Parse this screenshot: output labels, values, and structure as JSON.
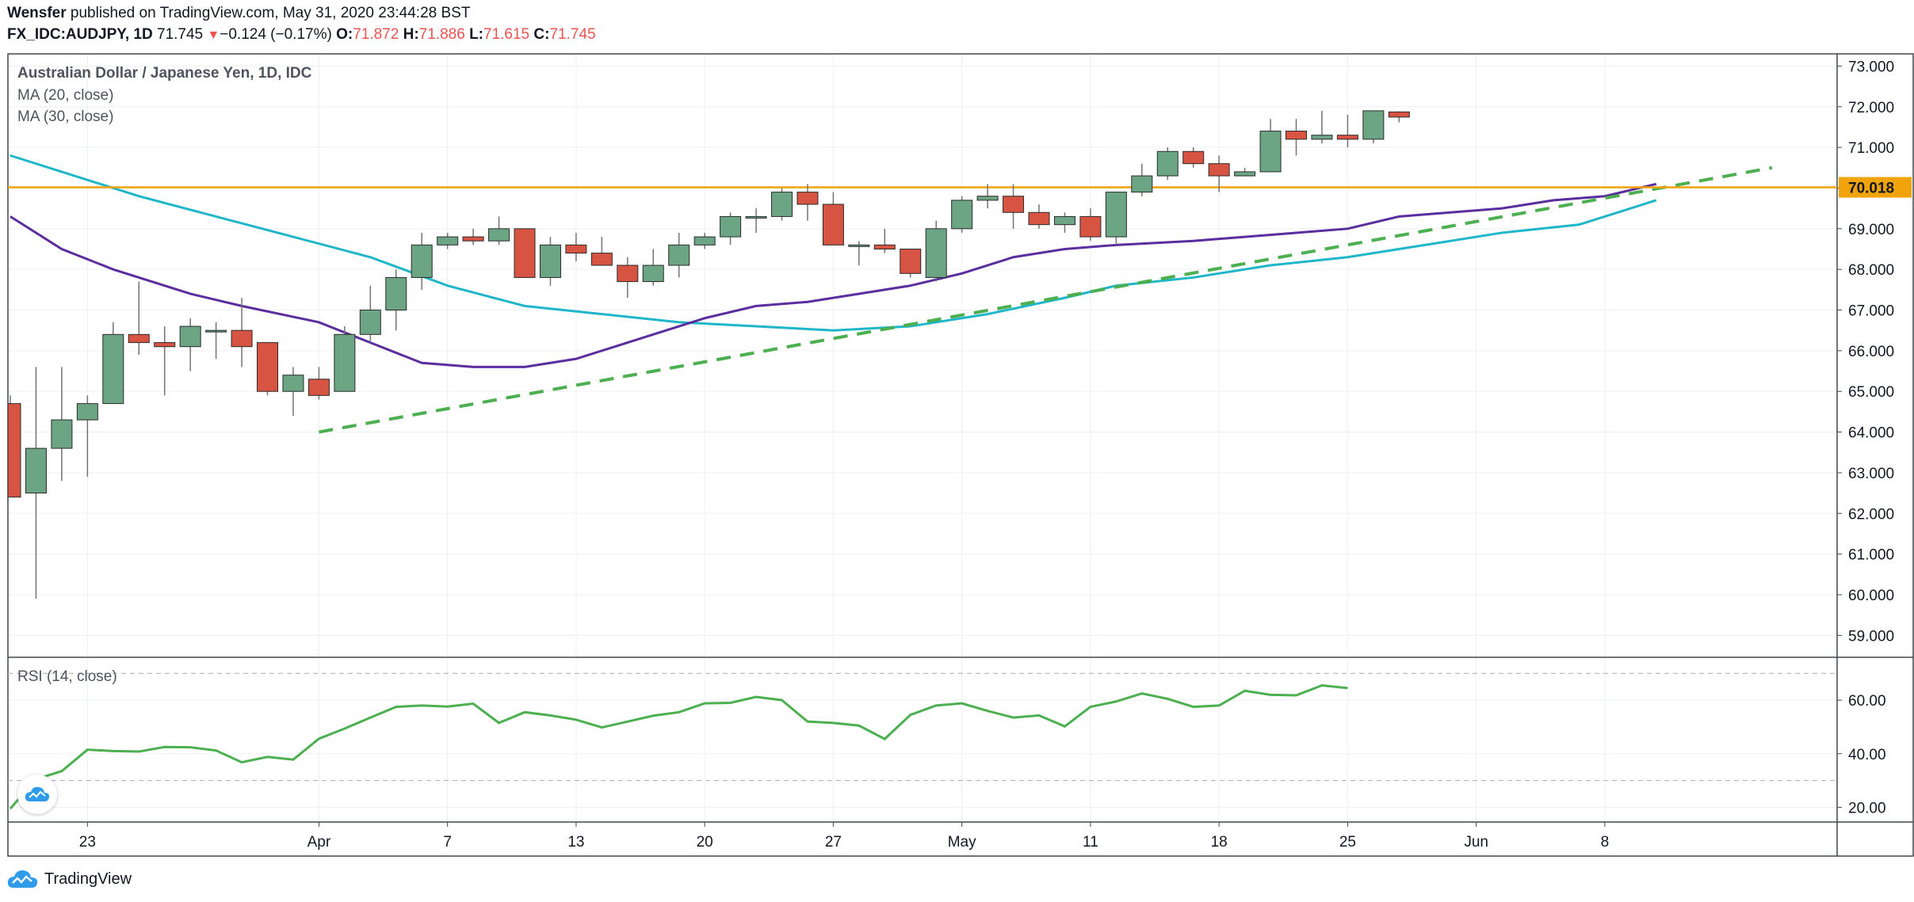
{
  "header": {
    "publisher": "Wensfer",
    "published_on": "published on TradingView.com, May 31, 2020 23:44:28 BST",
    "symbol": "FX_IDC:AUDJPY, 1D",
    "last": "71.745",
    "change_arrow": "▼",
    "change": "−0.124 (−0.17%)",
    "o_label": "O:",
    "o_value": "71.872",
    "h_label": "H:",
    "h_value": "71.886",
    "l_label": "L:",
    "l_value": "71.615",
    "c_label": "C:",
    "c_value": "71.745"
  },
  "legend": {
    "title": "Australian Dollar / Japanese Yen, 1D, IDC",
    "ma20": "MA (20, close)",
    "ma30": "MA (30, close)",
    "rsi": "RSI (14, close)"
  },
  "footer": {
    "brand": "TradingView"
  },
  "colors": {
    "up": "#6ba583",
    "down": "#d75442",
    "wick": "#737375",
    "ma20": "#5b2d9e",
    "ma30": "#1fb6c9",
    "trend": "#4caf50",
    "hline": "#f0a30a",
    "rsi": "#4caf50",
    "grid": "#eef0f3",
    "axis": "#434651"
  },
  "chart_data": {
    "type": "candlestick",
    "title": "Australian Dollar / Japanese Yen, 1D, IDC",
    "x_ticks": [
      {
        "i": 3,
        "label": "23"
      },
      {
        "i": 12,
        "label": "Apr"
      },
      {
        "i": 17,
        "label": "7"
      },
      {
        "i": 22,
        "label": "13"
      },
      {
        "i": 27,
        "label": "20"
      },
      {
        "i": 32,
        "label": "27"
      },
      {
        "i": 37,
        "label": "May"
      },
      {
        "i": 42,
        "label": "11"
      },
      {
        "i": 47,
        "label": "18"
      },
      {
        "i": 52,
        "label": "25"
      },
      {
        "i": 57,
        "label": "Jun"
      },
      {
        "i": 62,
        "label": "8"
      }
    ],
    "price_axis": {
      "ylim": [
        58.5,
        73.3
      ],
      "ticks": [
        "59.000",
        "60.000",
        "61.000",
        "62.000",
        "63.000",
        "64.000",
        "65.000",
        "66.000",
        "67.000",
        "68.000",
        "69.000",
        "70.000",
        "71.000",
        "72.000",
        "73.000"
      ],
      "marker": {
        "value": 70.018,
        "label": "70.018"
      }
    },
    "candles": [
      {
        "o": 64.7,
        "h": 64.9,
        "l": 62.4,
        "c": 62.4
      },
      {
        "o": 62.5,
        "h": 65.6,
        "l": 59.9,
        "c": 63.6
      },
      {
        "o": 63.6,
        "h": 65.6,
        "l": 62.8,
        "c": 64.3
      },
      {
        "o": 64.3,
        "h": 64.9,
        "l": 62.9,
        "c": 64.7
      },
      {
        "o": 64.7,
        "h": 66.7,
        "l": 64.7,
        "c": 66.4
      },
      {
        "o": 66.4,
        "h": 67.7,
        "l": 65.9,
        "c": 66.2
      },
      {
        "o": 66.2,
        "h": 66.6,
        "l": 64.9,
        "c": 66.1
      },
      {
        "o": 66.1,
        "h": 66.8,
        "l": 65.5,
        "c": 66.6
      },
      {
        "o": 66.5,
        "h": 66.7,
        "l": 65.8,
        "c": 66.5
      },
      {
        "o": 66.5,
        "h": 67.3,
        "l": 65.6,
        "c": 66.1
      },
      {
        "o": 66.2,
        "h": 66.2,
        "l": 64.9,
        "c": 65.0
      },
      {
        "o": 65.0,
        "h": 65.6,
        "l": 64.4,
        "c": 65.4
      },
      {
        "o": 65.3,
        "h": 65.6,
        "l": 64.8,
        "c": 64.9
      },
      {
        "o": 65.0,
        "h": 66.6,
        "l": 65.0,
        "c": 66.4
      },
      {
        "o": 66.4,
        "h": 67.6,
        "l": 66.2,
        "c": 67.0
      },
      {
        "o": 67.0,
        "h": 68.0,
        "l": 66.5,
        "c": 67.8
      },
      {
        "o": 67.8,
        "h": 68.9,
        "l": 67.5,
        "c": 68.6
      },
      {
        "o": 68.6,
        "h": 68.9,
        "l": 68.5,
        "c": 68.8
      },
      {
        "o": 68.8,
        "h": 69.0,
        "l": 68.6,
        "c": 68.7
      },
      {
        "o": 68.7,
        "h": 69.3,
        "l": 68.6,
        "c": 69.0
      },
      {
        "o": 69.0,
        "h": 69.0,
        "l": 67.8,
        "c": 67.8
      },
      {
        "o": 67.8,
        "h": 68.8,
        "l": 67.6,
        "c": 68.6
      },
      {
        "o": 68.6,
        "h": 68.9,
        "l": 68.2,
        "c": 68.4
      },
      {
        "o": 68.4,
        "h": 68.8,
        "l": 68.1,
        "c": 68.1
      },
      {
        "o": 68.1,
        "h": 68.3,
        "l": 67.3,
        "c": 67.7
      },
      {
        "o": 67.7,
        "h": 68.5,
        "l": 67.6,
        "c": 68.1
      },
      {
        "o": 68.1,
        "h": 68.9,
        "l": 67.8,
        "c": 68.6
      },
      {
        "o": 68.6,
        "h": 68.9,
        "l": 68.5,
        "c": 68.8
      },
      {
        "o": 68.8,
        "h": 69.4,
        "l": 68.6,
        "c": 69.3
      },
      {
        "o": 69.3,
        "h": 69.5,
        "l": 68.9,
        "c": 69.3
      },
      {
        "o": 69.3,
        "h": 70.0,
        "l": 69.2,
        "c": 69.9
      },
      {
        "o": 69.9,
        "h": 70.1,
        "l": 69.2,
        "c": 69.6
      },
      {
        "o": 69.6,
        "h": 69.9,
        "l": 68.6,
        "c": 68.6
      },
      {
        "o": 68.6,
        "h": 68.7,
        "l": 68.1,
        "c": 68.6
      },
      {
        "o": 68.6,
        "h": 69.0,
        "l": 68.4,
        "c": 68.5
      },
      {
        "o": 68.5,
        "h": 68.5,
        "l": 67.8,
        "c": 67.9
      },
      {
        "o": 67.8,
        "h": 69.2,
        "l": 67.7,
        "c": 69.0
      },
      {
        "o": 69.0,
        "h": 69.8,
        "l": 68.9,
        "c": 69.7
      },
      {
        "o": 69.7,
        "h": 70.1,
        "l": 69.5,
        "c": 69.8
      },
      {
        "o": 69.8,
        "h": 70.1,
        "l": 69.0,
        "c": 69.4
      },
      {
        "o": 69.4,
        "h": 69.6,
        "l": 69.0,
        "c": 69.1
      },
      {
        "o": 69.1,
        "h": 69.4,
        "l": 68.9,
        "c": 69.3
      },
      {
        "o": 69.3,
        "h": 69.5,
        "l": 68.7,
        "c": 68.8
      },
      {
        "o": 68.8,
        "h": 69.9,
        "l": 68.6,
        "c": 69.9
      },
      {
        "o": 69.9,
        "h": 70.6,
        "l": 69.8,
        "c": 70.3
      },
      {
        "o": 70.3,
        "h": 71.0,
        "l": 70.2,
        "c": 70.9
      },
      {
        "o": 70.9,
        "h": 71.0,
        "l": 70.5,
        "c": 70.6
      },
      {
        "o": 70.6,
        "h": 70.8,
        "l": 69.9,
        "c": 70.3
      },
      {
        "o": 70.3,
        "h": 70.5,
        "l": 70.3,
        "c": 70.4
      },
      {
        "o": 70.4,
        "h": 71.7,
        "l": 70.4,
        "c": 71.4
      },
      {
        "o": 71.4,
        "h": 71.7,
        "l": 70.8,
        "c": 71.2
      },
      {
        "o": 71.2,
        "h": 71.9,
        "l": 71.1,
        "c": 71.3
      },
      {
        "o": 71.3,
        "h": 71.8,
        "l": 71.0,
        "c": 71.2
      },
      {
        "o": 71.2,
        "h": 71.9,
        "l": 71.1,
        "c": 71.9
      },
      {
        "o": 71.872,
        "h": 71.886,
        "l": 71.615,
        "c": 71.745
      }
    ],
    "ma20": [
      {
        "i": 0,
        "v": 69.3
      },
      {
        "i": 2,
        "v": 68.5
      },
      {
        "i": 4,
        "v": 68.0
      },
      {
        "i": 7,
        "v": 67.4
      },
      {
        "i": 9,
        "v": 67.1
      },
      {
        "i": 12,
        "v": 66.7
      },
      {
        "i": 14,
        "v": 66.2
      },
      {
        "i": 16,
        "v": 65.7
      },
      {
        "i": 18,
        "v": 65.6
      },
      {
        "i": 20,
        "v": 65.6
      },
      {
        "i": 22,
        "v": 65.8
      },
      {
        "i": 25,
        "v": 66.4
      },
      {
        "i": 27,
        "v": 66.8
      },
      {
        "i": 29,
        "v": 67.1
      },
      {
        "i": 31,
        "v": 67.2
      },
      {
        "i": 33,
        "v": 67.4
      },
      {
        "i": 35,
        "v": 67.6
      },
      {
        "i": 37,
        "v": 67.9
      },
      {
        "i": 39,
        "v": 68.3
      },
      {
        "i": 41,
        "v": 68.5
      },
      {
        "i": 43,
        "v": 68.6
      },
      {
        "i": 46,
        "v": 68.7
      },
      {
        "i": 48,
        "v": 68.8
      },
      {
        "i": 50,
        "v": 68.9
      },
      {
        "i": 52,
        "v": 69.0
      },
      {
        "i": 54,
        "v": 69.3
      },
      {
        "i": 56,
        "v": 69.4
      },
      {
        "i": 58,
        "v": 69.5
      },
      {
        "i": 60,
        "v": 69.7
      },
      {
        "i": 62,
        "v": 69.8
      },
      {
        "i": 64,
        "v": 70.1
      }
    ],
    "ma30": [
      {
        "i": 0,
        "v": 70.8
      },
      {
        "i": 2,
        "v": 70.4
      },
      {
        "i": 5,
        "v": 69.8
      },
      {
        "i": 8,
        "v": 69.3
      },
      {
        "i": 11,
        "v": 68.8
      },
      {
        "i": 14,
        "v": 68.3
      },
      {
        "i": 17,
        "v": 67.6
      },
      {
        "i": 20,
        "v": 67.1
      },
      {
        "i": 23,
        "v": 66.9
      },
      {
        "i": 26,
        "v": 66.7
      },
      {
        "i": 29,
        "v": 66.6
      },
      {
        "i": 32,
        "v": 66.5
      },
      {
        "i": 35,
        "v": 66.6
      },
      {
        "i": 38,
        "v": 66.9
      },
      {
        "i": 41,
        "v": 67.3
      },
      {
        "i": 43,
        "v": 67.6
      },
      {
        "i": 46,
        "v": 67.8
      },
      {
        "i": 49,
        "v": 68.1
      },
      {
        "i": 52,
        "v": 68.3
      },
      {
        "i": 55,
        "v": 68.6
      },
      {
        "i": 58,
        "v": 68.9
      },
      {
        "i": 61,
        "v": 69.1
      },
      {
        "i": 64,
        "v": 69.7
      }
    ],
    "trendline": {
      "start": {
        "i": 12,
        "v": 64.0
      },
      "end": {
        "i": 68.5,
        "v": 70.5
      }
    },
    "hline": 70.018,
    "rsi": {
      "ylim": [
        14.5,
        76
      ],
      "ticks": [
        "20.00",
        "40.00",
        "60.00"
      ],
      "bands": [
        30,
        70
      ],
      "values": [
        19.5,
        30.5,
        33.5,
        41.5,
        41.0,
        40.8,
        42.5,
        42.4,
        41.2,
        36.8,
        38.8,
        37.8,
        45.6,
        49.4,
        53.5,
        57.5,
        58.0,
        57.6,
        58.7,
        51.5,
        55.5,
        54.3,
        52.7,
        49.8,
        52.0,
        54.2,
        55.5,
        58.8,
        59.0,
        61.2,
        60.0,
        52.0,
        51.5,
        50.5,
        45.5,
        54.5,
        58.0,
        58.8,
        56.0,
        53.5,
        54.3,
        50.2,
        57.5,
        59.5,
        62.5,
        60.5,
        57.5,
        58.0,
        63.5,
        62.0,
        61.8,
        65.5,
        64.5
      ]
    }
  }
}
